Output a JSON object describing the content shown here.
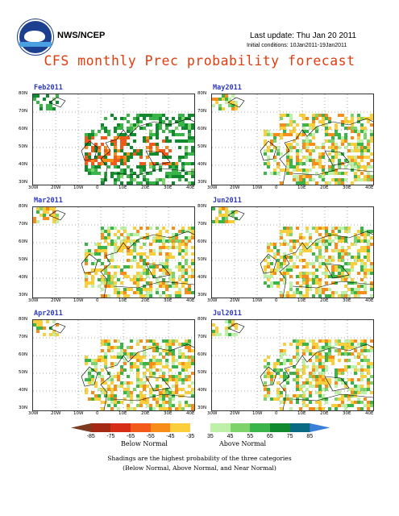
{
  "header": {
    "brand": "NWS/NCEP",
    "last_update": "Last update: Thu Jan 20 2011",
    "initial_conditions": "Initial conditions: 10Jan2011-19Jan2011",
    "title": "CFS monthly Prec probability forecast"
  },
  "panels": [
    {
      "label": "Feb2011"
    },
    {
      "label": "May2011"
    },
    {
      "label": "Mar2011"
    },
    {
      "label": "Jun2011"
    },
    {
      "label": "Apr2011"
    },
    {
      "label": "Jul2011"
    }
  ],
  "axes": {
    "lat_labels": [
      "80N",
      "70N",
      "60N",
      "50N",
      "40N",
      "30N"
    ],
    "lon_labels": [
      "30W",
      "20W",
      "10W",
      "0",
      "10E",
      "20E",
      "30E",
      "40E"
    ]
  },
  "colorbar": {
    "ticks": [
      "-85",
      "-75",
      "-65",
      "-55",
      "-45",
      "-35",
      "35",
      "45",
      "55",
      "65",
      "75",
      "85"
    ],
    "below_label": "Below Normal",
    "above_label": "Above Normal",
    "colors": [
      "#7d3b1f",
      "#a52a13",
      "#d62e16",
      "#f25a1a",
      "#f88e19",
      "#fbcf3b",
      "#ffffff",
      "#bff0a8",
      "#7fd36b",
      "#3bb54a",
      "#118a2e",
      "#0a6a83",
      "#3a7fd8"
    ]
  },
  "notes": {
    "line1": "Shadings are the highest probability of the three categories",
    "line2": "(Below Normal, Above Normal, and Near Normal)"
  }
}
